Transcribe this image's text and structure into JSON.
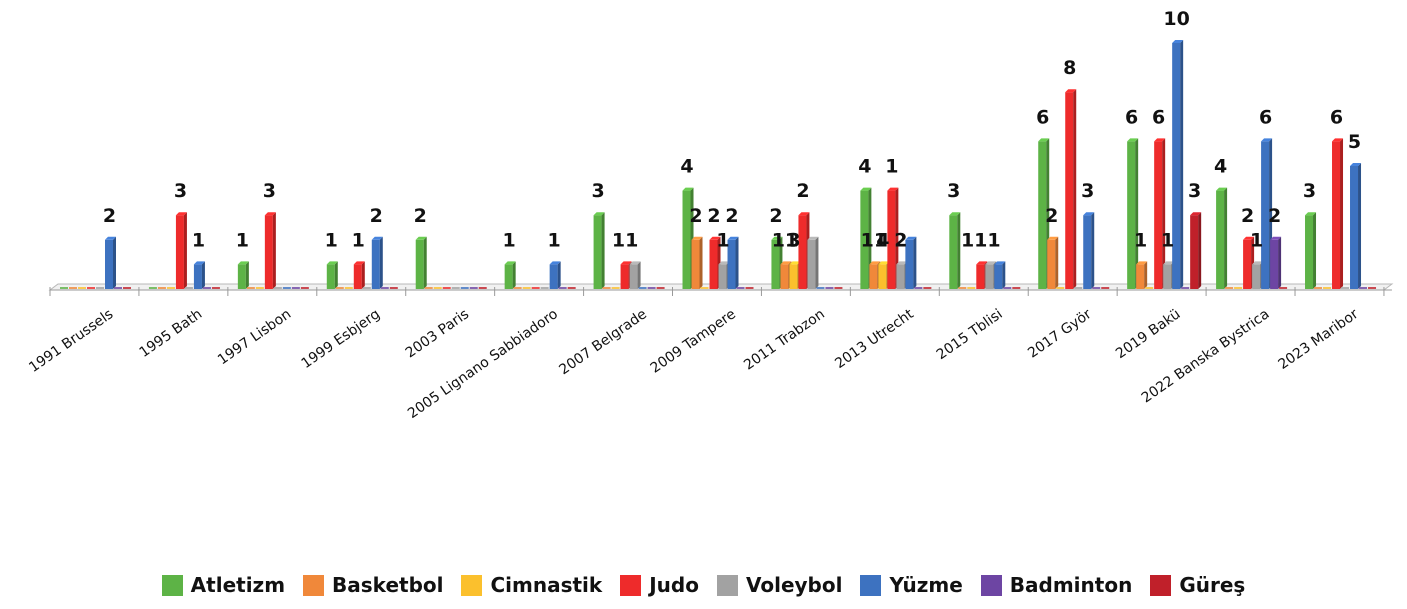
{
  "chart_data": {
    "type": "bar",
    "categories": [
      "1991 Brussels",
      "1995 Bath",
      "1997 Lisbon",
      "1999 Esbjerg",
      "2003 Paris",
      "2005 Lignano Sabbiadoro",
      "2007 Belgrade",
      "2009 Tampere",
      "2011 Trabzon",
      "2013 Utrecht",
      "2015 Tblisi",
      "2017 Györ",
      "2019 Bakü",
      "2022 Banska Bystrica",
      "2023 Maribor"
    ],
    "series": [
      {
        "name": "Atletizm",
        "color": "#5db346",
        "values": [
          0,
          0,
          1,
          1,
          2,
          1,
          3,
          4,
          2,
          4,
          3,
          6,
          6,
          4,
          3
        ]
      },
      {
        "name": "Basketbol",
        "color": "#f0883a",
        "values": [
          0,
          0,
          0,
          0,
          0,
          0,
          0,
          2,
          1,
          1,
          0,
          2,
          1,
          0,
          0
        ]
      },
      {
        "name": "Cimnastik",
        "color": "#fbc02d",
        "values": [
          0,
          0,
          0,
          0,
          0,
          0,
          0,
          0,
          1,
          1,
          0,
          0,
          0,
          0,
          0
        ]
      },
      {
        "name": "Judo",
        "color": "#ee2b2b",
        "values": [
          0,
          3,
          3,
          1,
          0,
          0,
          1,
          2,
          3,
          4,
          1,
          8,
          6,
          2,
          6
        ]
      },
      {
        "name": "Voleybol",
        "color": "#a2a2a2",
        "values": [
          0,
          0,
          0,
          0,
          0,
          0,
          1,
          1,
          2,
          1,
          1,
          0,
          1,
          1,
          0
        ]
      },
      {
        "name": "Yüzme",
        "color": "#3d72c0",
        "values": [
          2,
          1,
          0,
          2,
          0,
          1,
          0,
          2,
          0,
          2,
          1,
          3,
          10,
          6,
          5
        ]
      },
      {
        "name": "Badminton",
        "color": "#6d45a3",
        "values": [
          0,
          0,
          0,
          0,
          0,
          0,
          0,
          0,
          0,
          0,
          0,
          0,
          0,
          2,
          0
        ]
      },
      {
        "name": "Güreş",
        "color": "#c0202a",
        "values": [
          0,
          0,
          0,
          0,
          0,
          0,
          0,
          0,
          0,
          0,
          0,
          0,
          3,
          0,
          0
        ]
      }
    ],
    "ylim": [
      0,
      10
    ],
    "grid": false,
    "legend_position": "bottom",
    "data_labels": [
      {
        "category": 0,
        "text": "2"
      },
      {
        "category": 1,
        "text": "3"
      },
      {
        "category": 1,
        "text": "1"
      },
      {
        "category": 2,
        "text": "1"
      },
      {
        "category": 2,
        "text": "3"
      },
      {
        "category": 3,
        "text": "1"
      },
      {
        "category": 3,
        "text": "1"
      },
      {
        "category": 3,
        "text": "2"
      },
      {
        "category": 4,
        "text": "2"
      },
      {
        "category": 5,
        "text": "1"
      },
      {
        "category": 5,
        "text": "1"
      },
      {
        "category": 6,
        "text": "3"
      },
      {
        "category": 6,
        "text": "11"
      },
      {
        "category": 7,
        "text": "4"
      },
      {
        "category": 7,
        "text": "2"
      },
      {
        "category": 7,
        "text": "2"
      },
      {
        "category": 7,
        "text": "1"
      },
      {
        "category": 7,
        "text": "2"
      },
      {
        "category": 8,
        "text": "2"
      },
      {
        "category": 8,
        "text": "11"
      },
      {
        "category": 8,
        "text": "3"
      },
      {
        "category": 8,
        "text": "2"
      },
      {
        "category": 9,
        "text": "4"
      },
      {
        "category": 9,
        "text": "11"
      },
      {
        "category": 9,
        "text": "4"
      },
      {
        "category": 9,
        "text": "1"
      },
      {
        "category": 9,
        "text": "2"
      },
      {
        "category": 10,
        "text": "3"
      },
      {
        "category": 10,
        "text": "111"
      },
      {
        "category": 11,
        "text": "6"
      },
      {
        "category": 11,
        "text": "2"
      },
      {
        "category": 11,
        "text": "8"
      },
      {
        "category": 11,
        "text": "3"
      },
      {
        "category": 12,
        "text": "6"
      },
      {
        "category": 12,
        "text": "1"
      },
      {
        "category": 12,
        "text": "6"
      },
      {
        "category": 12,
        "text": "1"
      },
      {
        "category": 12,
        "text": "10"
      },
      {
        "category": 12,
        "text": "3"
      },
      {
        "category": 13,
        "text": "4"
      },
      {
        "category": 13,
        "text": "2"
      },
      {
        "category": 13,
        "text": "1"
      },
      {
        "category": 13,
        "text": "6"
      },
      {
        "category": 13,
        "text": "2"
      },
      {
        "category": 14,
        "text": "3"
      },
      {
        "category": 14,
        "text": "6"
      },
      {
        "category": 14,
        "text": "5"
      }
    ]
  }
}
